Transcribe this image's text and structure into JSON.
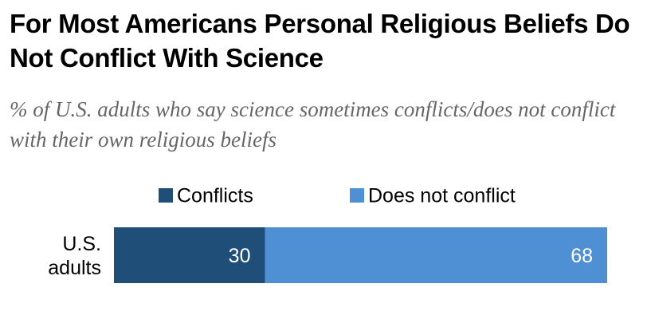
{
  "header": {
    "title": "For Most Americans Personal Religious Beliefs Do Not Conflict With Science",
    "subtitle": "% of U.S. adults who say science sometimes conflicts/does not conflict with their own religious beliefs"
  },
  "chart_data": {
    "type": "bar",
    "orientation": "horizontal",
    "stacked": true,
    "categories": [
      "U.S. adults"
    ],
    "category_label_lines": [
      [
        "U.S.",
        "adults"
      ]
    ],
    "series": [
      {
        "name": "Conflicts",
        "values": [
          30
        ],
        "color": "#1f4e79"
      },
      {
        "name": "Does not conflict",
        "values": [
          68
        ],
        "color": "#4f8fd4"
      }
    ],
    "xlim": [
      0,
      98
    ],
    "grid": false,
    "legend_placement": "top"
  }
}
